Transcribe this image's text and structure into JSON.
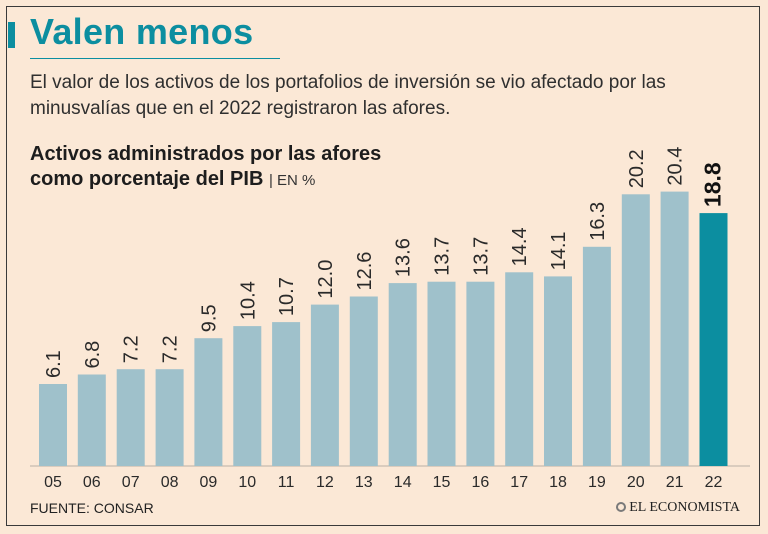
{
  "header": {
    "title": "Valen menos",
    "deck": "El valor de los activos de los portafolios de inversión se vio afectado por las minusvalías que en el 2022 registraron las afores."
  },
  "chart_header": {
    "title_line1": "Activos administrados por las afores",
    "title_line2": "como porcentaje del PIB",
    "unit": "| EN %"
  },
  "chart_data": {
    "type": "bar",
    "title": "Activos administrados por las afores como porcentaje del PIB",
    "ylabel": "EN %",
    "categories": [
      "05",
      "06",
      "07",
      "08",
      "09",
      "10",
      "11",
      "12",
      "13",
      "14",
      "15",
      "16",
      "17",
      "18",
      "19",
      "20",
      "21",
      "22"
    ],
    "values": [
      6.1,
      6.8,
      7.2,
      7.2,
      9.5,
      10.4,
      10.7,
      12.0,
      12.6,
      13.6,
      13.7,
      13.7,
      14.4,
      14.1,
      16.3,
      20.2,
      20.4,
      18.8
    ],
    "value_labels": [
      "6.1",
      "6.8",
      "7.2",
      "7.2",
      "9.5",
      "10.4",
      "10.7",
      "12.0",
      "12.6",
      "13.6",
      "13.7",
      "13.7",
      "14.4",
      "14.1",
      "16.3",
      "20.2",
      "20.4",
      "18.8"
    ],
    "highlight_index": 17,
    "ylim": [
      0,
      21
    ],
    "colors": {
      "bar": "#9fc1cb",
      "highlight": "#0c8ea0"
    }
  },
  "footer": {
    "source": "FUENTE: CONSAR",
    "brand": "EL ECONOMISTA"
  },
  "colors": {
    "background": "#fbe8d6",
    "accent": "#0c8ea0"
  }
}
